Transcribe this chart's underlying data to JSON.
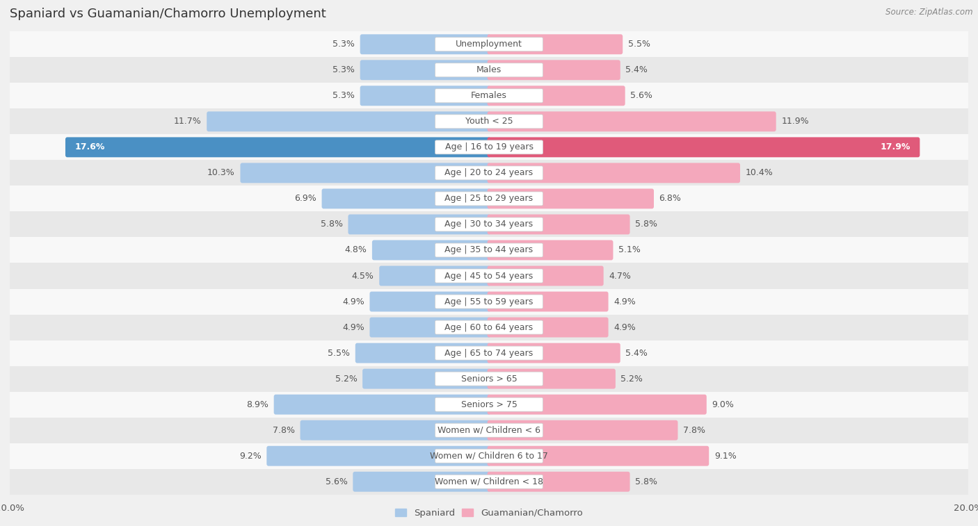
{
  "title": "Spaniard vs Guamanian/Chamorro Unemployment",
  "source": "Source: ZipAtlas.com",
  "categories": [
    "Unemployment",
    "Males",
    "Females",
    "Youth < 25",
    "Age | 16 to 19 years",
    "Age | 20 to 24 years",
    "Age | 25 to 29 years",
    "Age | 30 to 34 years",
    "Age | 35 to 44 years",
    "Age | 45 to 54 years",
    "Age | 55 to 59 years",
    "Age | 60 to 64 years",
    "Age | 65 to 74 years",
    "Seniors > 65",
    "Seniors > 75",
    "Women w/ Children < 6",
    "Women w/ Children 6 to 17",
    "Women w/ Children < 18"
  ],
  "spaniard_values": [
    5.3,
    5.3,
    5.3,
    11.7,
    17.6,
    10.3,
    6.9,
    5.8,
    4.8,
    4.5,
    4.9,
    4.9,
    5.5,
    5.2,
    8.9,
    7.8,
    9.2,
    5.6
  ],
  "guamanian_values": [
    5.5,
    5.4,
    5.6,
    11.9,
    17.9,
    10.4,
    6.8,
    5.8,
    5.1,
    4.7,
    4.9,
    4.9,
    5.4,
    5.2,
    9.0,
    7.8,
    9.1,
    5.8
  ],
  "spaniard_color": "#a8c8e8",
  "guamanian_color": "#f4a8bc",
  "highlight_spaniard_color": "#4a90c4",
  "highlight_guamanian_color": "#e05a7a",
  "bg_color": "#f0f0f0",
  "row_color_even": "#f8f8f8",
  "row_color_odd": "#e8e8e8",
  "label_color": "#555555",
  "value_color": "#555555",
  "highlight_value_color": "#ffffff",
  "max_val": 20.0,
  "legend_spaniard": "Spaniard",
  "legend_guamanian": "Guamanian/Chamorro",
  "title_fontsize": 13,
  "label_fontsize": 9,
  "value_fontsize": 9,
  "axis_fontsize": 9.5
}
